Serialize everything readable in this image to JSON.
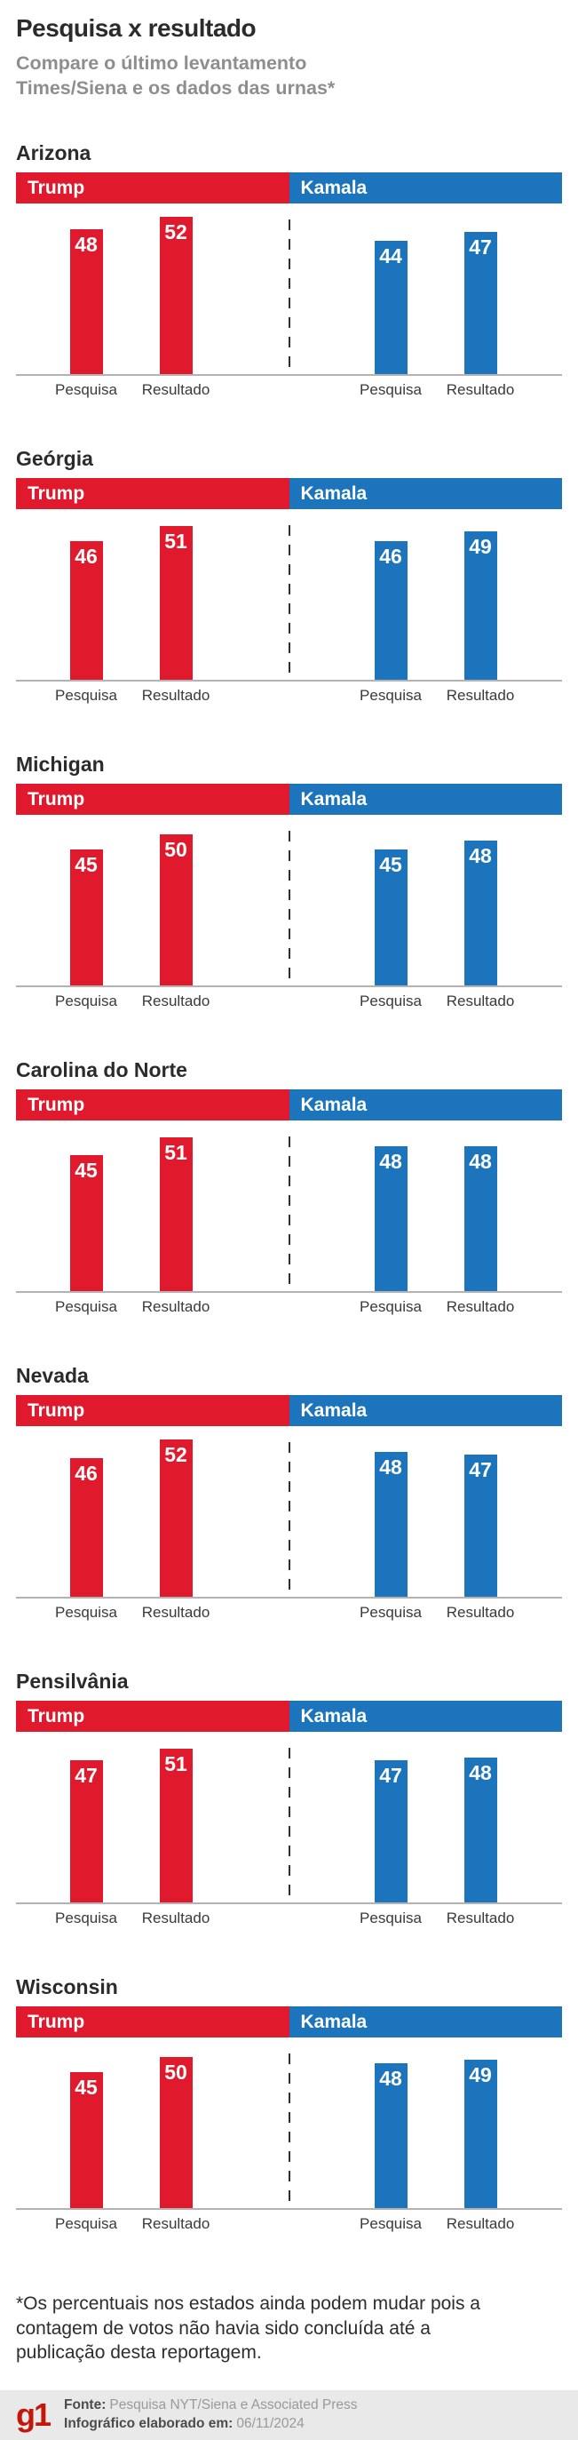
{
  "header": {
    "title": "Pesquisa x resultado",
    "subtitle": "Compare o último levantamento Times/Siena e os dados das urnas*"
  },
  "bar_labels": {
    "poll": "Pesquisa",
    "result": "Resultado"
  },
  "chart_data": {
    "type": "bar",
    "unit": "percent",
    "categories": [
      "Pesquisa",
      "Resultado"
    ],
    "ylim": [
      0,
      56
    ],
    "grid": false,
    "value_labels": "inside-bar-top",
    "colors": {
      "Trump": "#e01a2c",
      "Kamala": "#1b74bc"
    },
    "states": [
      {
        "name": "Arizona",
        "series": [
          {
            "name": "Trump",
            "values": [
              48,
              52
            ]
          },
          {
            "name": "Kamala",
            "values": [
              44,
              47
            ]
          }
        ]
      },
      {
        "name": "Geórgia",
        "series": [
          {
            "name": "Trump",
            "values": [
              46,
              51
            ]
          },
          {
            "name": "Kamala",
            "values": [
              46,
              49
            ]
          }
        ]
      },
      {
        "name": "Michigan",
        "series": [
          {
            "name": "Trump",
            "values": [
              45,
              50
            ]
          },
          {
            "name": "Kamala",
            "values": [
              45,
              48
            ]
          }
        ]
      },
      {
        "name": "Carolina do Norte",
        "series": [
          {
            "name": "Trump",
            "values": [
              45,
              51
            ]
          },
          {
            "name": "Kamala",
            "values": [
              48,
              48
            ]
          }
        ]
      },
      {
        "name": "Nevada",
        "series": [
          {
            "name": "Trump",
            "values": [
              46,
              52
            ]
          },
          {
            "name": "Kamala",
            "values": [
              48,
              47
            ]
          }
        ]
      },
      {
        "name": "Pensilvânia",
        "series": [
          {
            "name": "Trump",
            "values": [
              47,
              51
            ]
          },
          {
            "name": "Kamala",
            "values": [
              47,
              48
            ]
          }
        ]
      },
      {
        "name": "Wisconsin",
        "series": [
          {
            "name": "Trump",
            "values": [
              45,
              50
            ]
          },
          {
            "name": "Kamala",
            "values": [
              48,
              49
            ]
          }
        ]
      }
    ]
  },
  "footnote": "*Os percentuais nos estados ainda podem mudar pois a contagem de votos não havia sido concluída até a publicação desta reportagem.",
  "footer": {
    "logo": "g1",
    "source_label": "Fonte:",
    "source": "Pesquisa NYT/Siena e Associated Press",
    "date_label": "Infográfico elaborado em:",
    "date": "06/11/2024"
  }
}
